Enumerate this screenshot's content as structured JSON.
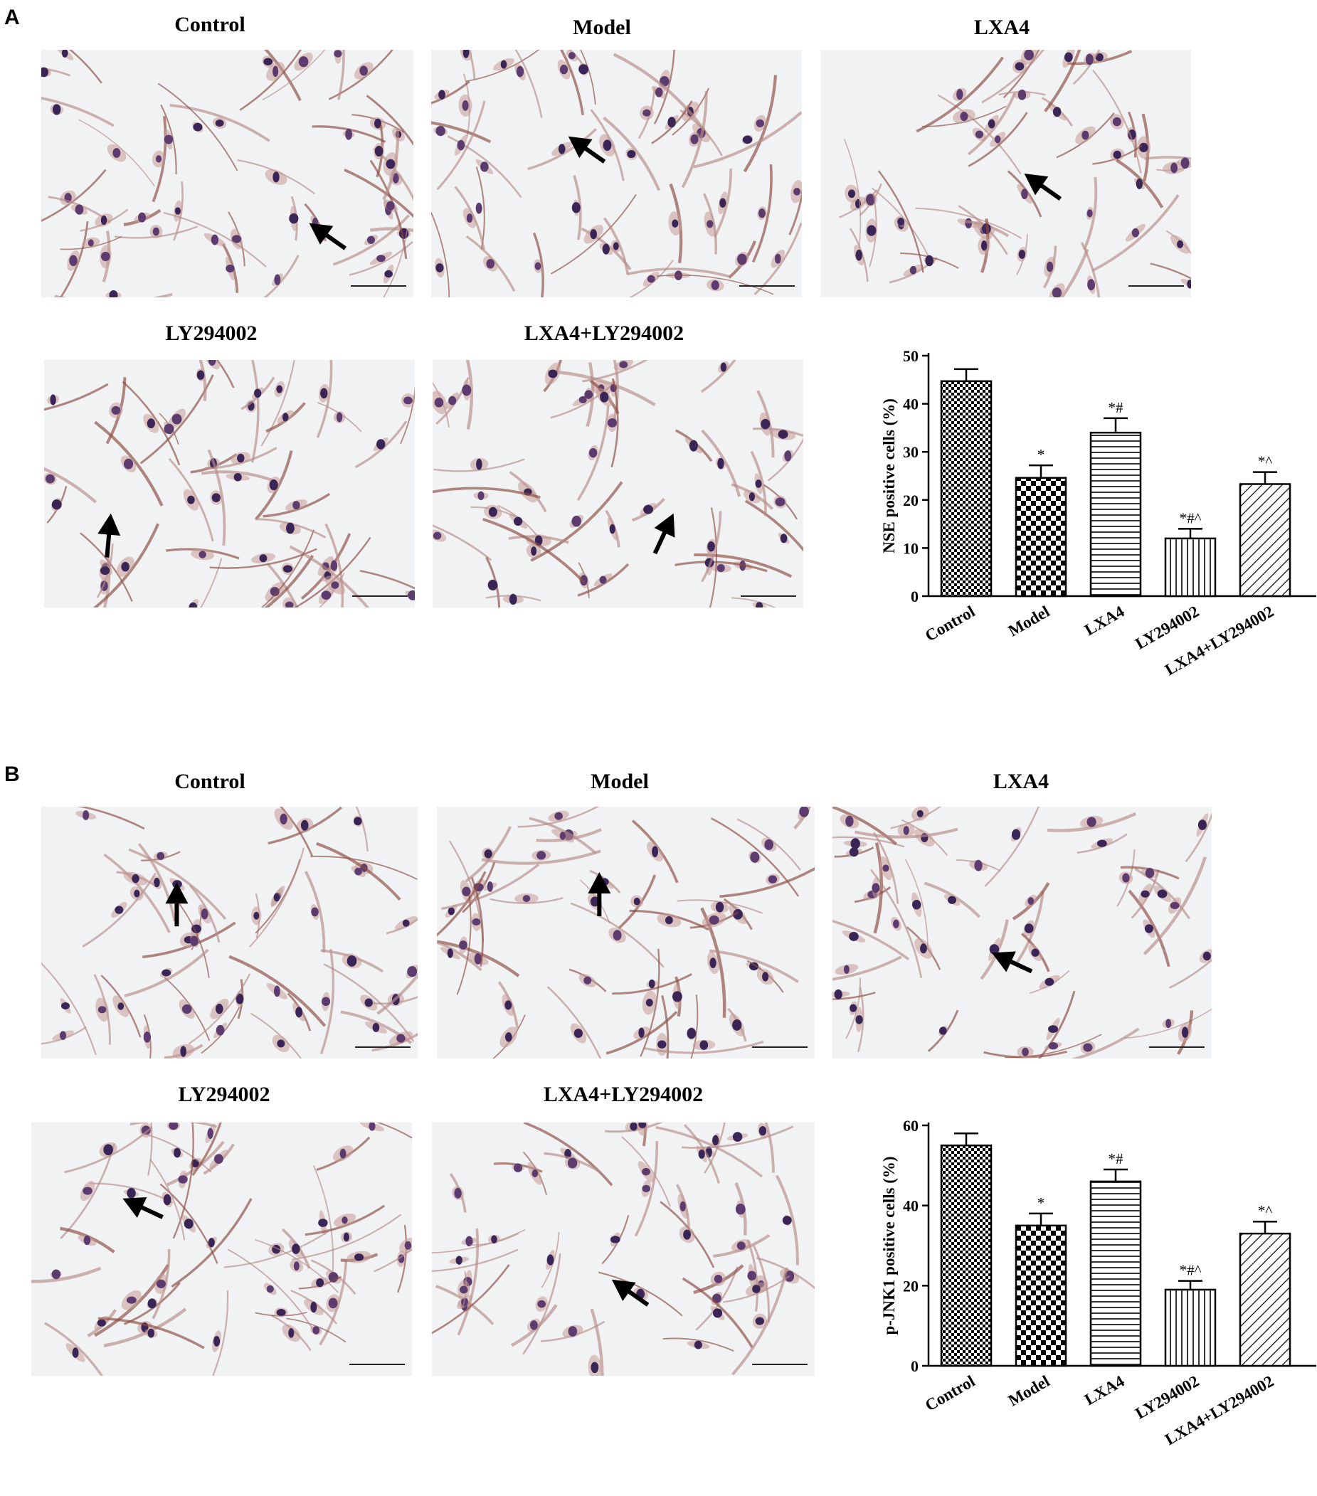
{
  "panels": [
    {
      "letter": "A",
      "images": [
        {
          "label": "Control"
        },
        {
          "label": "Model"
        },
        {
          "label": "LXA4"
        },
        {
          "label": "LY294002"
        },
        {
          "label": "LXA4+LY294002"
        }
      ],
      "chart_data": {
        "type": "bar",
        "categories": [
          "Control",
          "Model",
          "LXA4",
          "LY294002",
          "LXA4+LY294002"
        ],
        "values": [
          44.7,
          24.6,
          34.0,
          12.0,
          23.3
        ],
        "errors": [
          2.5,
          2.6,
          3.0,
          2.0,
          2.5
        ],
        "annotations": [
          "",
          "*",
          "*#",
          "*#^",
          "*^"
        ],
        "ylabel": "NSE positive cells (%)",
        "ylim": [
          0,
          50
        ],
        "yticks": [
          "0",
          "10",
          "20",
          "30",
          "40",
          "50"
        ],
        "patterns": [
          "checker-fine",
          "checker-coarse",
          "horizontal-lines",
          "vertical-lines",
          "diagonal-lines"
        ]
      }
    },
    {
      "letter": "B",
      "images": [
        {
          "label": "Control"
        },
        {
          "label": "Model"
        },
        {
          "label": "LXA4"
        },
        {
          "label": "LY294002"
        },
        {
          "label": "LXA4+LY294002"
        }
      ],
      "chart_data": {
        "type": "bar",
        "categories": [
          "Control",
          "Model",
          "LXA4",
          "LY294002",
          "LXA4+LY294002"
        ],
        "values": [
          55.0,
          35.0,
          46.0,
          19.0,
          33.0
        ],
        "errors": [
          3.0,
          3.0,
          3.0,
          2.2,
          3.0
        ],
        "annotations": [
          "",
          "*",
          "*#",
          "*#^",
          "*^"
        ],
        "ylabel": "p-JNK1 positive cells (%)",
        "ylim": [
          0,
          60
        ],
        "yticks": [
          "0",
          "20",
          "40",
          "60"
        ],
        "patterns": [
          "checker-fine",
          "checker-coarse",
          "horizontal-lines",
          "vertical-lines",
          "diagonal-lines"
        ]
      }
    }
  ]
}
